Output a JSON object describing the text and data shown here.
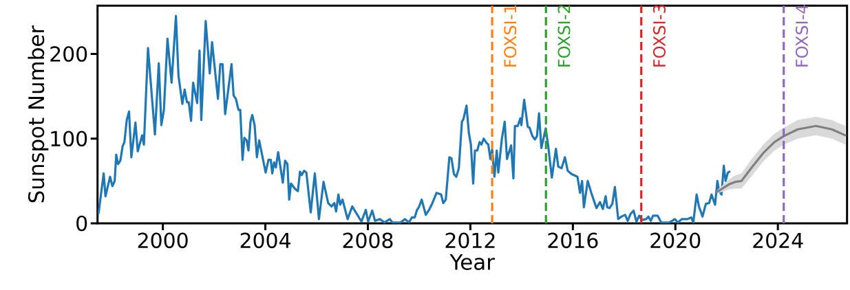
{
  "chart_data": {
    "type": "line",
    "xlabel": "Year",
    "ylabel": "Sunspot Number",
    "xlim": [
      1997.45,
      2026.7
    ],
    "ylim": [
      0,
      257
    ],
    "xticks": [
      2000,
      2004,
      2008,
      2012,
      2016,
      2020,
      2024
    ],
    "yticks": [
      0,
      100,
      200
    ],
    "marker": "none",
    "line_style": "solid",
    "series": [
      {
        "color": "#1f77b4",
        "x": [
          1997.49,
          1997.69,
          1997.76,
          1997.94,
          1998.03,
          1998.12,
          1998.18,
          1998.25,
          1998.34,
          1998.43,
          1998.5,
          1998.59,
          1998.68,
          1998.77,
          1998.93,
          1999.02,
          1999.19,
          1999.26,
          1999.42,
          1999.69,
          1999.84,
          1999.94,
          2000.04,
          2000.18,
          2000.34,
          2000.51,
          2000.61,
          2000.76,
          2000.85,
          2000.94,
          2001.01,
          2001.1,
          2001.18,
          2001.34,
          2001.43,
          2001.5,
          2001.67,
          2001.83,
          2001.92,
          2002.15,
          2002.24,
          2002.33,
          2002.43,
          2002.68,
          2002.76,
          2002.85,
          2002.95,
          2003.02,
          2003.11,
          2003.18,
          2003.27,
          2003.34,
          2003.42,
          2003.49,
          2003.58,
          2003.67,
          2003.76,
          2004.01,
          2004.12,
          2004.21,
          2004.27,
          2004.34,
          2004.41,
          2004.5,
          2004.68,
          2004.77,
          2004.86,
          2004.93,
          2005.0,
          2005.15,
          2005.27,
          2005.35,
          2005.42,
          2005.51,
          2005.6,
          2005.77,
          2005.93,
          2006.09,
          2006.27,
          2006.45,
          2006.58,
          2006.69,
          2006.76,
          2006.85,
          2006.92,
          2007.01,
          2007.21,
          2007.39,
          2007.75,
          2007.92,
          2008.01,
          2008.17,
          2008.28,
          2008.38,
          2008.47,
          2008.65,
          2008.85,
          2008.96,
          2009.27,
          2009.45,
          2009.6,
          2009.72,
          2009.83,
          2009.92,
          2009.99,
          2010.1,
          2010.26,
          2010.39,
          2010.52,
          2010.68,
          2010.86,
          2010.94,
          2011.04,
          2011.18,
          2011.26,
          2011.36,
          2011.45,
          2011.55,
          2011.67,
          2011.73,
          2011.85,
          2011.94,
          2012.02,
          2012.11,
          2012.18,
          2012.27,
          2012.36,
          2012.43,
          2012.52,
          2012.63,
          2012.7,
          2012.78,
          2012.85,
          2012.94,
          2013.03,
          2013.09,
          2013.23,
          2013.34,
          2013.43,
          2013.59,
          2013.68,
          2013.74,
          2013.85,
          2013.95,
          2013.99,
          2014.1,
          2014.24,
          2014.31,
          2014.42,
          2014.52,
          2014.6,
          2014.68,
          2014.77,
          2014.86,
          2014.94,
          2015.04,
          2015.18,
          2015.34,
          2015.43,
          2015.56,
          2015.69,
          2015.8,
          2015.96,
          2016.18,
          2016.28,
          2016.36,
          2016.43,
          2016.58,
          2016.72,
          2016.92,
          2017.06,
          2017.17,
          2017.28,
          2017.34,
          2017.43,
          2017.54,
          2017.64,
          2017.77,
          2017.9,
          2018.04,
          2018.14,
          2018.25,
          2018.37,
          2018.48,
          2018.59,
          2018.68,
          2018.86,
          2018.95,
          2019.04,
          2019.13,
          2019.31,
          2019.45,
          2019.76,
          2019.98,
          2020.1,
          2020.25,
          2020.47,
          2020.62,
          2020.7,
          2020.83,
          2020.92,
          2021.06,
          2021.19,
          2021.32,
          2021.41,
          2021.55,
          2021.64,
          2021.71,
          2021.8,
          2021.89,
          2021.96,
          2022.05,
          2022.11
        ],
        "values": [
          12,
          59,
          32,
          55,
          44,
          50,
          81,
          70,
          74,
          91,
          96,
          122,
          132,
          78,
          119,
          85,
          104,
          93,
          207,
          105,
          189,
          116,
          134,
          218,
          166,
          245,
          174,
          141,
          158,
          143,
          143,
          121,
          166,
          142,
          204,
          122,
          239,
          177,
          214,
          147,
          188,
          188,
          129,
          188,
          151,
          147,
          134,
          134,
          75,
          101,
          98,
          86,
          120,
          128,
          116,
          78,
          98,
          60,
          75,
          75,
          59,
          72,
          66,
          84,
          48,
          74,
          70,
          28,
          47,
          41,
          38,
          61,
          57,
          62,
          60,
          13,
          59,
          5,
          49,
          24,
          20,
          24,
          14,
          34,
          22,
          28,
          5,
          20,
          2,
          16,
          2,
          15,
          3,
          4,
          5,
          1,
          5,
          1,
          1,
          5,
          1,
          7,
          7,
          16,
          19,
          28,
          10,
          16,
          24,
          36,
          34,
          24,
          28,
          78,
          77,
          58,
          55,
          65,
          120,
          123,
          139,
          107,
          93,
          47,
          86,
          86,
          96,
          93,
          100,
          95,
          93,
          76,
          87,
          55,
          86,
          60,
          100,
          120,
          76,
          92,
          53,
          115,
          115,
          124,
          116,
          146,
          114,
          113,
          103,
          99,
          103,
          130,
          89,
          101,
          112,
          91,
          54,
          88,
          67,
          65,
          78,
          62,
          58,
          55,
          36,
          50,
          19,
          50,
          36,
          18,
          25,
          17,
          32,
          19,
          18,
          23,
          43,
          5,
          8,
          10,
          3,
          11,
          15,
          2,
          9,
          4,
          5,
          8,
          3,
          9,
          9,
          1,
          1,
          5,
          1,
          5,
          5,
          7,
          1,
          34,
          20,
          8,
          23,
          24,
          34,
          22,
          50,
          38,
          34,
          68,
          50,
          60,
          61
        ]
      },
      {
        "color": "#808080",
        "x": [
          2021.62,
          2022.09,
          2022.35,
          2022.58,
          2022.98,
          2023.43,
          2023.87,
          2024.23,
          2024.77,
          2025.49,
          2026.11,
          2026.63
        ],
        "values": [
          37,
          46,
          49,
          50,
          66,
          83,
          96,
          103,
          111,
          115,
          111,
          104
        ],
        "lower": [
          35,
          40,
          41,
          41,
          56,
          73,
          86,
          93,
          100,
          104,
          100,
          93
        ],
        "upper": [
          39,
          52,
          57,
          59,
          76,
          93,
          106,
          113,
          122,
          126,
          122,
          115
        ]
      }
    ],
    "ref_lines": [
      {
        "axis": "x",
        "value": 2012.85,
        "label": "FOXSI-1",
        "color": "#ff7f0e",
        "line_style": "dashed"
      },
      {
        "axis": "x",
        "value": 2014.95,
        "label": "FOXSI-2",
        "color": "#2ca02c",
        "line_style": "dashed"
      },
      {
        "axis": "x",
        "value": 2018.67,
        "label": "FOXSI-3",
        "color": "#d62728",
        "line_style": "dashed"
      },
      {
        "axis": "x",
        "value": 2024.23,
        "label": "FOXSI-4",
        "color": "#9467bd",
        "line_style": "dashed"
      }
    ]
  }
}
